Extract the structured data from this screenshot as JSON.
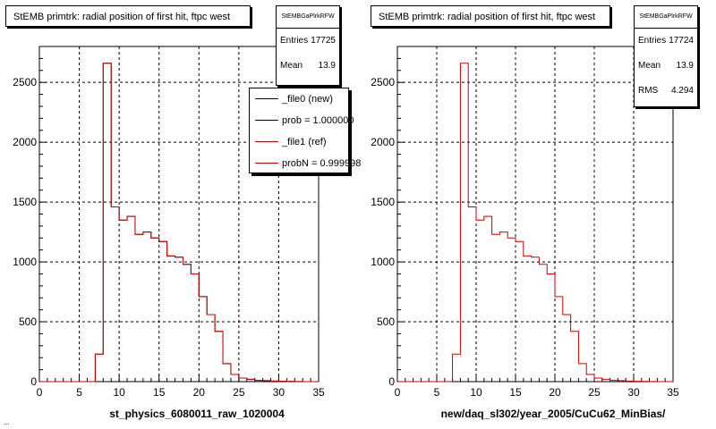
{
  "chart_data": [
    {
      "type": "histogram",
      "title": "StEMB primtrk: radial position of first hit, ftpc west",
      "xlabel": "st_physics_6080011_raw_1020004",
      "ylabel": "",
      "xlim": [
        0,
        35
      ],
      "ylim": [
        0,
        2800
      ],
      "x_ticks": [
        0,
        5,
        10,
        15,
        20,
        25,
        30,
        35
      ],
      "y_ticks": [
        0,
        500,
        1000,
        1500,
        2000,
        2500
      ],
      "grid": true,
      "bin_width": 1,
      "x_start": 0,
      "series": [
        {
          "name": "_file0 (new)",
          "color": "#000000",
          "values": [
            0,
            0,
            0,
            0,
            0,
            0,
            0,
            230,
            2660,
            1460,
            1350,
            1380,
            1230,
            1250,
            1200,
            1170,
            1050,
            1040,
            980,
            900,
            710,
            560,
            420,
            150,
            60,
            30,
            20,
            10,
            8,
            5,
            3,
            2,
            1,
            0,
            0
          ]
        },
        {
          "name": "_file1 (ref)",
          "color": "#cc0000",
          "values": [
            0,
            0,
            0,
            0,
            0,
            0,
            0,
            230,
            2660,
            1460,
            1350,
            1380,
            1230,
            1250,
            1200,
            1170,
            1050,
            1040,
            980,
            900,
            710,
            560,
            420,
            150,
            60,
            30,
            20,
            10,
            8,
            5,
            3,
            2,
            1,
            0,
            0
          ]
        }
      ],
      "legend": {
        "placement": "top-right",
        "entries": [
          {
            "label": "_file0 (new)",
            "color": "#000000"
          },
          {
            "label": "prob = 1.000000",
            "color": "#000000"
          },
          {
            "label": "_file1 (ref)",
            "color": "#cc0000"
          },
          {
            "label": "probN = 0.999998",
            "color": "#cc0000"
          }
        ]
      },
      "stats": {
        "name": "StEMBGaPlrkRFW",
        "entries_label": "Entries",
        "entries": "17725",
        "mean_label": "Mean",
        "mean": "13.9"
      }
    },
    {
      "type": "histogram",
      "title": "StEMB primtrk: radial position of first hit, ftpc west",
      "xlabel": "new/daq_sl302/year_2005/CuCu62_MinBias/",
      "ylabel": "",
      "xlim": [
        0,
        35
      ],
      "ylim": [
        0,
        2800
      ],
      "x_ticks": [
        0,
        5,
        10,
        15,
        20,
        25,
        30,
        35
      ],
      "y_ticks": [
        0,
        500,
        1000,
        1500,
        2000,
        2500
      ],
      "grid": true,
      "bin_width": 1,
      "x_start": 0,
      "series": [
        {
          "name": "",
          "color": "#cc0000",
          "values": [
            0,
            0,
            0,
            0,
            0,
            0,
            0,
            230,
            2660,
            1460,
            1350,
            1380,
            1230,
            1250,
            1200,
            1170,
            1050,
            1040,
            980,
            900,
            710,
            560,
            420,
            150,
            60,
            30,
            20,
            10,
            8,
            5,
            3,
            2,
            1,
            0,
            0
          ]
        }
      ],
      "stats": {
        "name": "StEMBGaPlrkRFW",
        "entries_label": "Entries",
        "entries": "17724",
        "mean_label": "Mean",
        "mean": "13.9",
        "rms_label": "RMS",
        "rms": "4.294"
      }
    }
  ],
  "footer": "..."
}
